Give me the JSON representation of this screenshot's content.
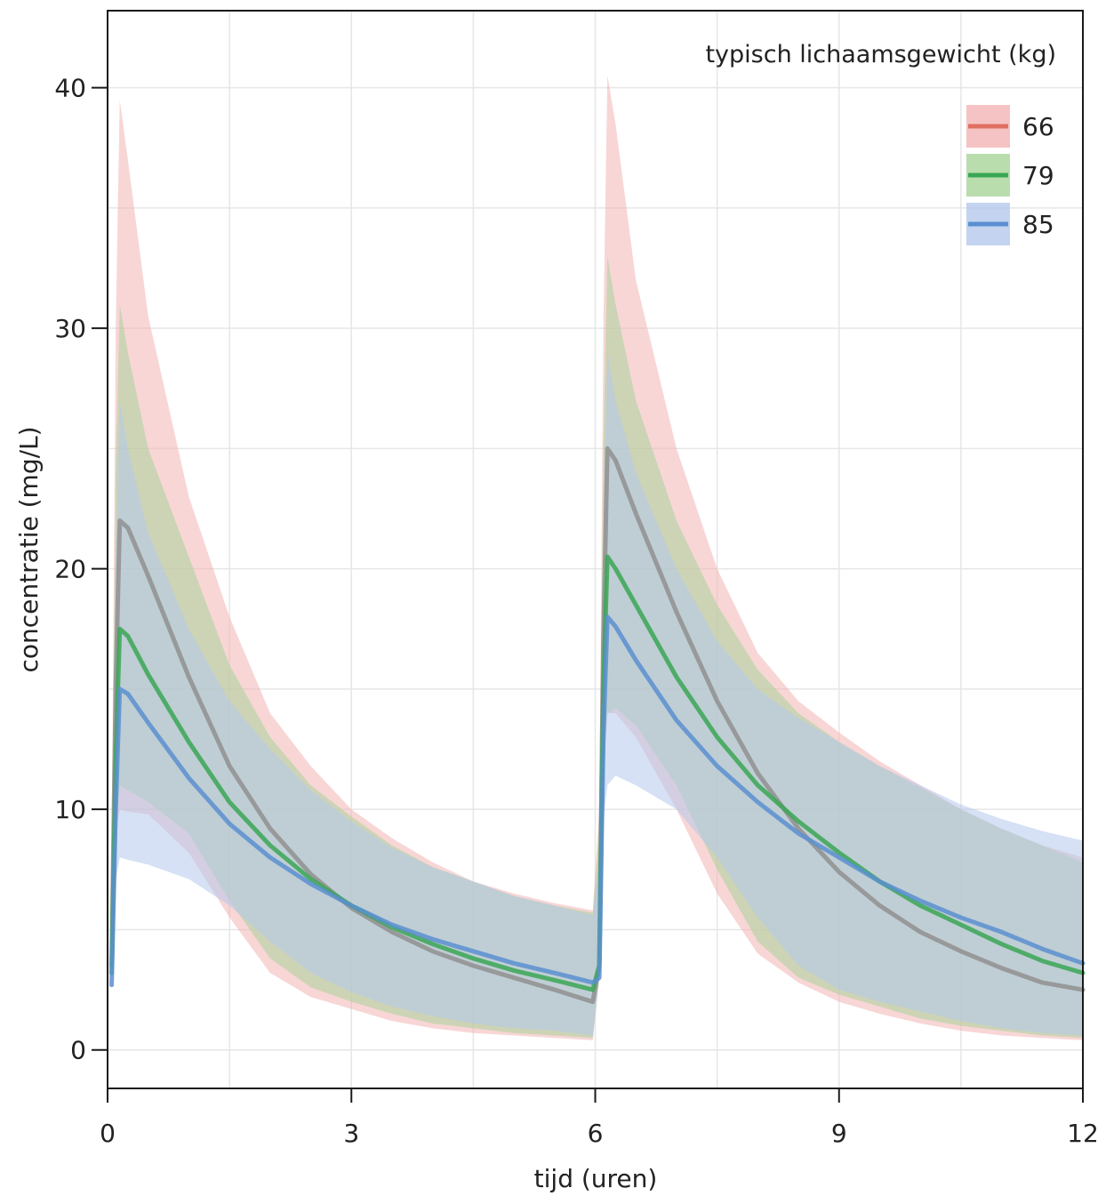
{
  "chart_data": {
    "type": "line",
    "xlabel": "tijd (uren)",
    "ylabel": "concentratie (mg/L)",
    "xlim": [
      0,
      12
    ],
    "ylim": [
      -1.6,
      43.2
    ],
    "xticks": [
      0,
      3,
      6,
      9,
      12
    ],
    "yticks": [
      0,
      10,
      20,
      30,
      40
    ],
    "grid": true,
    "legend": {
      "title": "typisch lichaamsgewicht (kg)",
      "position": "top-right"
    },
    "series": [
      {
        "name": "66",
        "color": "#e07060",
        "band_color": "#f2b4b4",
        "median": [
          [
            0.05,
            3.5
          ],
          [
            0.1,
            15
          ],
          [
            0.15,
            22
          ],
          [
            0.25,
            21.7
          ],
          [
            0.5,
            19.7
          ],
          [
            1,
            15.5
          ],
          [
            1.5,
            11.8
          ],
          [
            2,
            9.2
          ],
          [
            2.5,
            7.3
          ],
          [
            3,
            5.9
          ],
          [
            3.5,
            4.9
          ],
          [
            4,
            4.1
          ],
          [
            4.5,
            3.5
          ],
          [
            5,
            3
          ],
          [
            5.5,
            2.5
          ],
          [
            5.97,
            2
          ],
          [
            6.05,
            3.5
          ],
          [
            6.1,
            17
          ],
          [
            6.15,
            25
          ],
          [
            6.25,
            24.5
          ],
          [
            6.5,
            22.3
          ],
          [
            7,
            18.2
          ],
          [
            7.5,
            14.5
          ],
          [
            8,
            11.5
          ],
          [
            8.5,
            9.2
          ],
          [
            9,
            7.4
          ],
          [
            9.5,
            6
          ],
          [
            10,
            4.9
          ],
          [
            10.5,
            4.1
          ],
          [
            11,
            3.4
          ],
          [
            11.5,
            2.8
          ],
          [
            12,
            2.5
          ]
        ],
        "upper": [
          [
            0.05,
            8
          ],
          [
            0.1,
            30
          ],
          [
            0.15,
            39.5
          ],
          [
            0.25,
            37
          ],
          [
            0.5,
            30.5
          ],
          [
            1,
            23
          ],
          [
            1.5,
            18
          ],
          [
            2,
            14
          ],
          [
            2.5,
            11.8
          ],
          [
            3,
            10
          ],
          [
            3.5,
            8.8
          ],
          [
            4,
            7.8
          ],
          [
            4.5,
            7
          ],
          [
            5,
            6.5
          ],
          [
            5.5,
            6.1
          ],
          [
            5.97,
            5.8
          ],
          [
            6.05,
            10
          ],
          [
            6.1,
            30
          ],
          [
            6.15,
            40.5
          ],
          [
            6.25,
            38.5
          ],
          [
            6.5,
            32
          ],
          [
            7,
            25
          ],
          [
            7.5,
            20
          ],
          [
            8,
            16.5
          ],
          [
            8.5,
            14.5
          ],
          [
            9,
            13.2
          ],
          [
            9.5,
            12
          ],
          [
            10,
            11
          ],
          [
            10.5,
            10
          ],
          [
            11,
            9.2
          ],
          [
            11.5,
            8.5
          ],
          [
            12,
            8
          ]
        ],
        "lower": [
          [
            0.05,
            2.7
          ],
          [
            0.1,
            9
          ],
          [
            0.15,
            10
          ],
          [
            0.25,
            9.9
          ],
          [
            0.5,
            9.8
          ],
          [
            1,
            8.2
          ],
          [
            1.5,
            5.5
          ],
          [
            2,
            3.2
          ],
          [
            2.5,
            2.2
          ],
          [
            3,
            1.7
          ],
          [
            3.5,
            1.2
          ],
          [
            4,
            0.9
          ],
          [
            4.5,
            0.7
          ],
          [
            5,
            0.6
          ],
          [
            5.5,
            0.5
          ],
          [
            5.97,
            0.4
          ],
          [
            6.05,
            3
          ],
          [
            6.1,
            11
          ],
          [
            6.15,
            14
          ],
          [
            6.25,
            14
          ],
          [
            6.5,
            13
          ],
          [
            7,
            10
          ],
          [
            7.5,
            6.5
          ],
          [
            8,
            4
          ],
          [
            8.5,
            2.8
          ],
          [
            9,
            2
          ],
          [
            9.5,
            1.5
          ],
          [
            10,
            1.1
          ],
          [
            10.5,
            0.8
          ],
          [
            11,
            0.6
          ],
          [
            11.5,
            0.5
          ],
          [
            12,
            0.4
          ]
        ]
      },
      {
        "name": "79",
        "color": "#3aa655",
        "band_color": "#a9d49a",
        "median": [
          [
            0.05,
            3.2
          ],
          [
            0.1,
            12
          ],
          [
            0.15,
            17.5
          ],
          [
            0.25,
            17.2
          ],
          [
            0.5,
            15.6
          ],
          [
            1,
            12.8
          ],
          [
            1.5,
            10.3
          ],
          [
            2,
            8.5
          ],
          [
            2.5,
            7.1
          ],
          [
            3,
            6
          ],
          [
            3.5,
            5.1
          ],
          [
            4,
            4.4
          ],
          [
            4.5,
            3.8
          ],
          [
            5,
            3.3
          ],
          [
            5.5,
            2.9
          ],
          [
            5.97,
            2.5
          ],
          [
            6.05,
            3.5
          ],
          [
            6.1,
            15
          ],
          [
            6.15,
            20.5
          ],
          [
            6.25,
            20
          ],
          [
            6.5,
            18.5
          ],
          [
            7,
            15.5
          ],
          [
            7.5,
            13
          ],
          [
            8,
            11
          ],
          [
            8.5,
            9.5
          ],
          [
            9,
            8.2
          ],
          [
            9.5,
            7
          ],
          [
            10,
            6
          ],
          [
            10.5,
            5.2
          ],
          [
            11,
            4.4
          ],
          [
            11.5,
            3.7
          ],
          [
            12,
            3.2
          ]
        ],
        "upper": [
          [
            0.05,
            7
          ],
          [
            0.1,
            24
          ],
          [
            0.15,
            31
          ],
          [
            0.25,
            29
          ],
          [
            0.5,
            25
          ],
          [
            1,
            20.5
          ],
          [
            1.5,
            16
          ],
          [
            2,
            13
          ],
          [
            2.5,
            11
          ],
          [
            3,
            9.7
          ],
          [
            3.5,
            8.5
          ],
          [
            4,
            7.6
          ],
          [
            4.5,
            7
          ],
          [
            5,
            6.4
          ],
          [
            5.5,
            6
          ],
          [
            5.97,
            5.7
          ],
          [
            6.05,
            9
          ],
          [
            6.1,
            25
          ],
          [
            6.15,
            33
          ],
          [
            6.25,
            31
          ],
          [
            6.5,
            27
          ],
          [
            7,
            22
          ],
          [
            7.5,
            18.5
          ],
          [
            8,
            15.8
          ],
          [
            8.5,
            14
          ],
          [
            9,
            12.8
          ],
          [
            9.5,
            11.8
          ],
          [
            10,
            10.9
          ],
          [
            10.5,
            10
          ],
          [
            11,
            9.2
          ],
          [
            11.5,
            8.5
          ],
          [
            12,
            7.8
          ]
        ],
        "lower": [
          [
            0.05,
            2.7
          ],
          [
            0.1,
            9
          ],
          [
            0.15,
            11
          ],
          [
            0.25,
            10.8
          ],
          [
            0.5,
            10.3
          ],
          [
            1,
            9
          ],
          [
            1.5,
            6.2
          ],
          [
            2,
            3.8
          ],
          [
            2.5,
            2.6
          ],
          [
            3,
            2
          ],
          [
            3.5,
            1.5
          ],
          [
            4,
            1.1
          ],
          [
            4.5,
            0.9
          ],
          [
            5,
            0.7
          ],
          [
            5.5,
            0.6
          ],
          [
            5.97,
            0.5
          ],
          [
            6.05,
            3
          ],
          [
            6.1,
            11.5
          ],
          [
            6.15,
            14
          ],
          [
            6.25,
            14.2
          ],
          [
            6.5,
            13.5
          ],
          [
            7,
            11
          ],
          [
            7.5,
            7.5
          ],
          [
            8,
            4.5
          ],
          [
            8.5,
            3
          ],
          [
            9,
            2.3
          ],
          [
            9.5,
            1.8
          ],
          [
            10,
            1.3
          ],
          [
            10.5,
            1
          ],
          [
            11,
            0.8
          ],
          [
            11.5,
            0.6
          ],
          [
            12,
            0.5
          ]
        ]
      },
      {
        "name": "85",
        "color": "#5a8fd0",
        "band_color": "#b4c8ec",
        "median": [
          [
            0.05,
            2.7
          ],
          [
            0.1,
            10
          ],
          [
            0.15,
            15
          ],
          [
            0.25,
            14.8
          ],
          [
            0.5,
            13.6
          ],
          [
            1,
            11.3
          ],
          [
            1.5,
            9.4
          ],
          [
            2,
            8
          ],
          [
            2.5,
            6.9
          ],
          [
            3,
            6
          ],
          [
            3.5,
            5.2
          ],
          [
            4,
            4.6
          ],
          [
            4.5,
            4.1
          ],
          [
            5,
            3.6
          ],
          [
            5.5,
            3.2
          ],
          [
            5.97,
            2.8
          ],
          [
            6.05,
            3
          ],
          [
            6.1,
            13
          ],
          [
            6.15,
            18
          ],
          [
            6.25,
            17.6
          ],
          [
            6.5,
            16.2
          ],
          [
            7,
            13.7
          ],
          [
            7.5,
            11.8
          ],
          [
            8,
            10.3
          ],
          [
            8.5,
            9
          ],
          [
            9,
            8
          ],
          [
            9.5,
            7
          ],
          [
            10,
            6.2
          ],
          [
            10.5,
            5.5
          ],
          [
            11,
            4.9
          ],
          [
            11.5,
            4.2
          ],
          [
            12,
            3.6
          ]
        ],
        "upper": [
          [
            0.05,
            6
          ],
          [
            0.1,
            20
          ],
          [
            0.15,
            27
          ],
          [
            0.25,
            25
          ],
          [
            0.5,
            21.5
          ],
          [
            1,
            17.5
          ],
          [
            1.5,
            14.5
          ],
          [
            2,
            12.5
          ],
          [
            2.5,
            10.8
          ],
          [
            3,
            9.5
          ],
          [
            3.5,
            8.4
          ],
          [
            4,
            7.6
          ],
          [
            4.5,
            7
          ],
          [
            5,
            6.4
          ],
          [
            5.5,
            6
          ],
          [
            5.97,
            5.6
          ],
          [
            6.05,
            8
          ],
          [
            6.1,
            22
          ],
          [
            6.15,
            29
          ],
          [
            6.25,
            27
          ],
          [
            6.5,
            24
          ],
          [
            7,
            20
          ],
          [
            7.5,
            17
          ],
          [
            8,
            15
          ],
          [
            8.5,
            13.8
          ],
          [
            9,
            12.8
          ],
          [
            9.5,
            11.8
          ],
          [
            10,
            11
          ],
          [
            10.5,
            10.2
          ],
          [
            11,
            9.6
          ],
          [
            11.5,
            9.1
          ],
          [
            12,
            8.7
          ]
        ],
        "lower": [
          [
            0.05,
            2.7
          ],
          [
            0.1,
            7
          ],
          [
            0.15,
            8
          ],
          [
            0.25,
            7.9
          ],
          [
            0.5,
            7.7
          ],
          [
            1,
            7.1
          ],
          [
            1.5,
            6
          ],
          [
            2,
            4.5
          ],
          [
            2.5,
            3.2
          ],
          [
            3,
            2.4
          ],
          [
            3.5,
            1.8
          ],
          [
            4,
            1.4
          ],
          [
            4.5,
            1.1
          ],
          [
            5,
            0.9
          ],
          [
            5.5,
            0.8
          ],
          [
            5.97,
            0.6
          ],
          [
            6.05,
            3
          ],
          [
            6.1,
            9.5
          ],
          [
            6.15,
            11
          ],
          [
            6.25,
            11.4
          ],
          [
            6.5,
            11
          ],
          [
            7,
            10
          ],
          [
            7.5,
            8
          ],
          [
            8,
            5.5
          ],
          [
            8.5,
            3.5
          ],
          [
            9,
            2.5
          ],
          [
            9.5,
            2
          ],
          [
            10,
            1.6
          ],
          [
            10.5,
            1.2
          ],
          [
            11,
            0.9
          ],
          [
            11.5,
            0.7
          ],
          [
            12,
            0.6
          ]
        ]
      }
    ]
  }
}
